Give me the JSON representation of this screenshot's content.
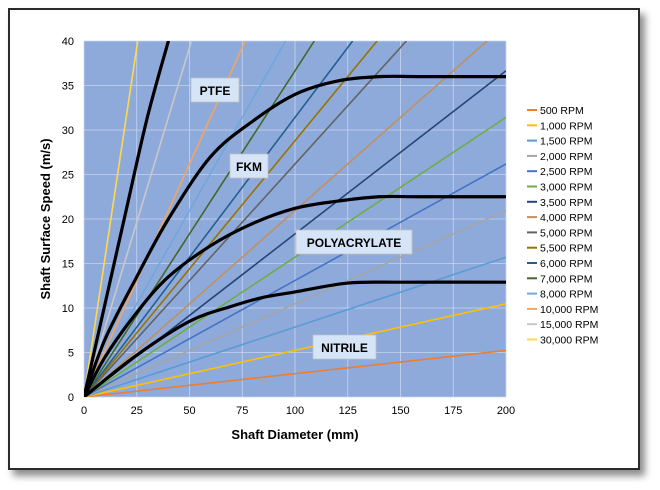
{
  "chart_data": {
    "type": "line",
    "title": "",
    "xlabel": "Shaft Diameter (mm)",
    "ylabel": "Shaft Surface Speed (m/s)",
    "xlim": [
      0,
      200
    ],
    "ylim": [
      0,
      40
    ],
    "xticks": [
      "0",
      "25",
      "50",
      "75",
      "100",
      "125",
      "150",
      "175",
      "200"
    ],
    "yticks": [
      "0",
      "5",
      "10",
      "15",
      "20",
      "25",
      "30",
      "35",
      "40"
    ],
    "grid": true,
    "legend_position": "right",
    "plot_background": "#8eaadb",
    "series": [
      {
        "name": "500 RPM",
        "color": "#ed7d31",
        "rpm": 500
      },
      {
        "name": "1,000 RPM",
        "color": "#ffc000",
        "rpm": 1000
      },
      {
        "name": "1,500 RPM",
        "color": "#5b9bd5",
        "rpm": 1500
      },
      {
        "name": "2,000 RPM",
        "color": "#a5a5a5",
        "rpm": 2000
      },
      {
        "name": "2,500 RPM",
        "color": "#4472c4",
        "rpm": 2500
      },
      {
        "name": "3,000 RPM",
        "color": "#70ad47",
        "rpm": 3000
      },
      {
        "name": "3,500 RPM",
        "color": "#264478",
        "rpm": 3500
      },
      {
        "name": "4,000 RPM",
        "color": "#c09060",
        "rpm": 4000
      },
      {
        "name": "5,000 RPM",
        "color": "#636363",
        "rpm": 5000
      },
      {
        "name": "5,500 RPM",
        "color": "#997300",
        "rpm": 5500
      },
      {
        "name": "6,000 RPM",
        "color": "#255e91",
        "rpm": 6000
      },
      {
        "name": "7,000 RPM",
        "color": "#43682b",
        "rpm": 7000
      },
      {
        "name": "8,000 RPM",
        "color": "#6fa8dc",
        "rpm": 8000
      },
      {
        "name": "10,000 RPM",
        "color": "#f4a460",
        "rpm": 10000
      },
      {
        "name": "15,000 RPM",
        "color": "#c8c8c8",
        "rpm": 15000
      },
      {
        "name": "30,000 RPM",
        "color": "#ffd84d",
        "rpm": 30000
      }
    ],
    "limit_curves": [
      {
        "label": "PTFE",
        "color": "#000000",
        "x": [
          0,
          10,
          20,
          30,
          40
        ],
        "y": [
          0,
          10.5,
          21,
          31.4,
          40
        ]
      },
      {
        "label": "FKM",
        "color": "#000000",
        "x": [
          0,
          10,
          25,
          40,
          60,
          80,
          100,
          120,
          140,
          160,
          200
        ],
        "y": [
          0,
          6.5,
          13.5,
          20,
          27,
          31,
          34,
          35.5,
          36,
          36,
          36
        ]
      },
      {
        "label": "POLYACRYLATE",
        "color": "#000000",
        "x": [
          0,
          10,
          25,
          40,
          60,
          80,
          100,
          120,
          140,
          160,
          200
        ],
        "y": [
          0,
          4.5,
          9.5,
          13.5,
          17,
          19.5,
          21.2,
          22,
          22.5,
          22.5,
          22.5
        ]
      },
      {
        "label": "NITRILE",
        "color": "#000000",
        "x": [
          0,
          25,
          50,
          70,
          85,
          100,
          125,
          150,
          200
        ],
        "y": [
          0,
          4.7,
          8.5,
          10.2,
          11.2,
          11.8,
          12.8,
          12.9,
          12.9
        ]
      }
    ],
    "annotations": [
      "PTFE",
      "FKM",
      "POLYACRYLATE",
      "NITRILE"
    ]
  }
}
